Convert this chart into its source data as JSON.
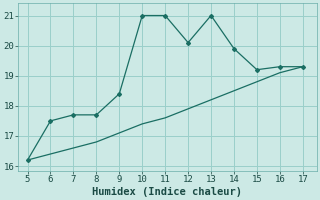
{
  "xlabel": "Humidex (Indice chaleur)",
  "x": [
    5,
    6,
    7,
    8,
    9,
    10,
    11,
    12,
    13,
    14,
    15,
    16,
    17
  ],
  "y_line1": [
    16.2,
    17.5,
    17.7,
    17.7,
    18.4,
    21.0,
    21.0,
    20.1,
    21.0,
    19.9,
    19.2,
    19.3,
    19.3
  ],
  "y_line2": [
    16.2,
    16.4,
    16.6,
    16.8,
    17.1,
    17.4,
    17.6,
    17.9,
    18.2,
    18.5,
    18.8,
    19.1,
    19.3
  ],
  "line_color": "#1a6e63",
  "bg_color": "#cce9e5",
  "grid_color": "#9acfca",
  "ylim": [
    15.85,
    21.4
  ],
  "xlim": [
    4.6,
    17.6
  ],
  "yticks": [
    16,
    17,
    18,
    19,
    20,
    21
  ],
  "xticks": [
    5,
    6,
    7,
    8,
    9,
    10,
    11,
    12,
    13,
    14,
    15,
    16,
    17
  ],
  "tick_fontsize": 6.5,
  "xlabel_fontsize": 7.5
}
